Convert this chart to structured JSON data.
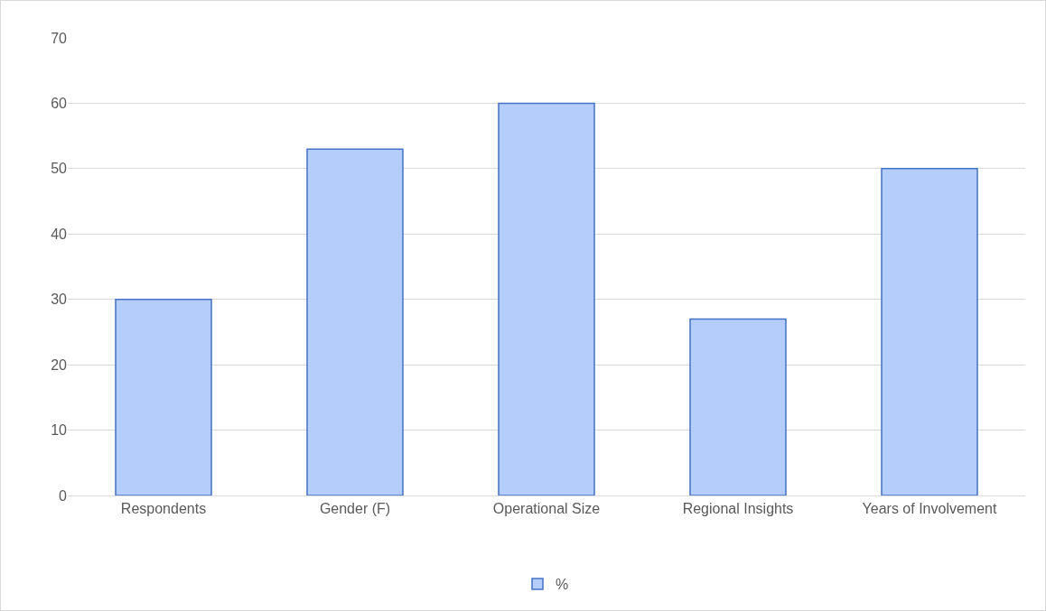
{
  "chart_data": {
    "type": "bar",
    "categories": [
      "Respondents",
      "Gender (F)",
      "Operational Size",
      "Regional Insights",
      "Years of Involvement"
    ],
    "series": [
      {
        "name": "%",
        "color": "#b4cdfa",
        "values": [
          30,
          53,
          60,
          27,
          50
        ]
      }
    ],
    "ylim": [
      0,
      70
    ],
    "yticks": [
      0,
      10,
      20,
      30,
      40,
      50,
      60,
      70
    ],
    "grid": "y",
    "legend": "bottom"
  }
}
